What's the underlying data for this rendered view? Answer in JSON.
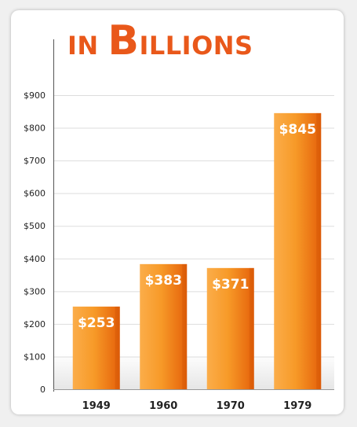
{
  "chart_data": {
    "type": "bar",
    "title": "in Billions",
    "title_parts": {
      "word1": "IN",
      "word2_initial": "B",
      "word2_rest": "ILLIONS"
    },
    "categories": [
      "1949",
      "1960",
      "1970",
      "1979"
    ],
    "values": [
      253,
      383,
      371,
      845
    ],
    "data_labels": [
      "$253",
      "$383",
      "$371",
      "$845"
    ],
    "y_ticks": [
      "0",
      "$100",
      "$200",
      "$300",
      "$400",
      "$500",
      "$600",
      "$700",
      "$800",
      "$900"
    ],
    "ylim": [
      0,
      900
    ],
    "grid": true,
    "xlabel": "",
    "ylabel": "",
    "colors": {
      "bar_light": "#fbad4a",
      "bar_mid": "#f79a28",
      "bar_dark": "#e5610a",
      "title": "#e9581a",
      "grid": "#dddddd",
      "axis": "#555555"
    }
  }
}
